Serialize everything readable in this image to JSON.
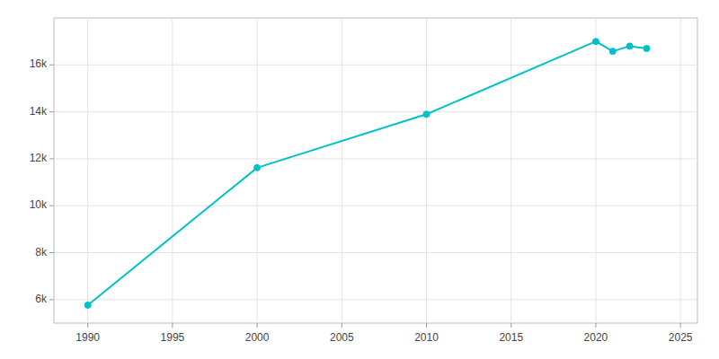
{
  "chart_data": {
    "type": "line",
    "x": [
      1990,
      2000,
      2010,
      2020,
      2021,
      2022,
      2023
    ],
    "values": [
      5768,
      11620,
      13900,
      17000,
      16580,
      16800,
      16700
    ],
    "color": "#00c0c8",
    "marker": "circle",
    "xlim": [
      1988,
      2026
    ],
    "ylim": [
      5000,
      18000
    ],
    "xticks": [
      1990,
      1995,
      2000,
      2005,
      2010,
      2015,
      2020,
      2025
    ],
    "yticks": [
      {
        "value": 6000,
        "label": "6k"
      },
      {
        "value": 8000,
        "label": "8k"
      },
      {
        "value": 10000,
        "label": "10k"
      },
      {
        "value": 12000,
        "label": "12k"
      },
      {
        "value": 14000,
        "label": "14k"
      },
      {
        "value": 16000,
        "label": "16k"
      }
    ],
    "grid": true
  }
}
